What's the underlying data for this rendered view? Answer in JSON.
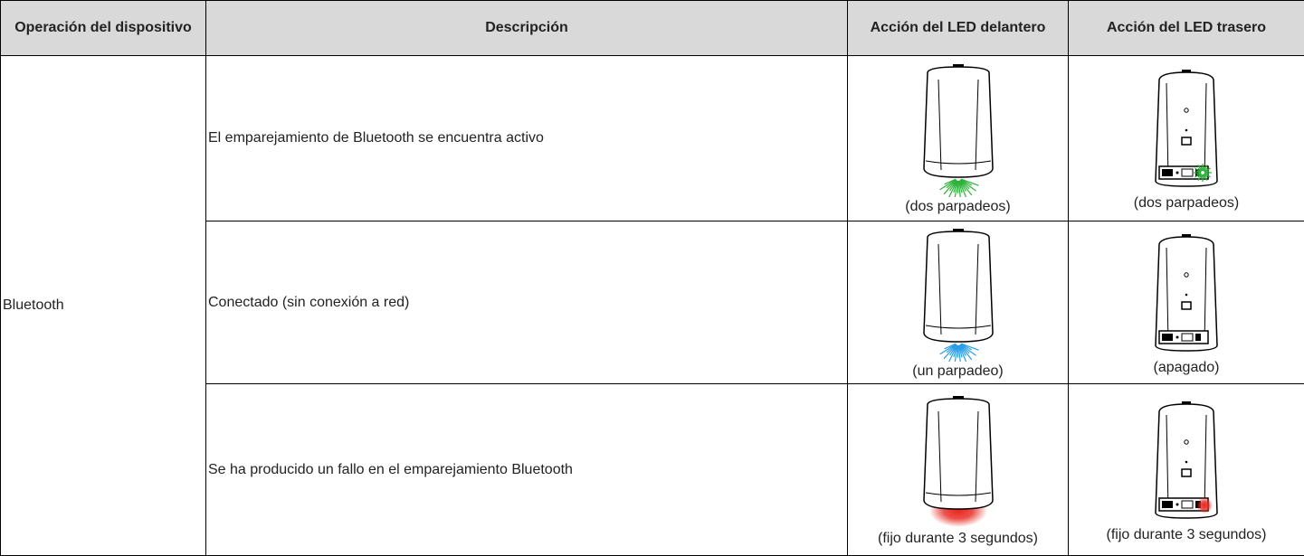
{
  "table": {
    "headers": [
      "Operación del dispositivo",
      "Descripción",
      "Acción del LED delantero",
      "Acción del LED trasero"
    ],
    "device": "Bluetooth",
    "rows": [
      {
        "description": "El emparejamiento de Bluetooth se encuentra activo",
        "front_caption": "(dos parpadeos)",
        "rear_caption": "(dos parpadeos)"
      },
      {
        "description": "Conectado (sin conexión a red)",
        "front_caption": "(un parpadeo)",
        "rear_caption": "(apagado)"
      },
      {
        "description": "Se ha producido un fallo en el emparejamiento Bluetooth",
        "front_caption": "(fijo durante 3 segundos)",
        "rear_caption": "(fijo durante 3 segundos)"
      }
    ]
  }
}
